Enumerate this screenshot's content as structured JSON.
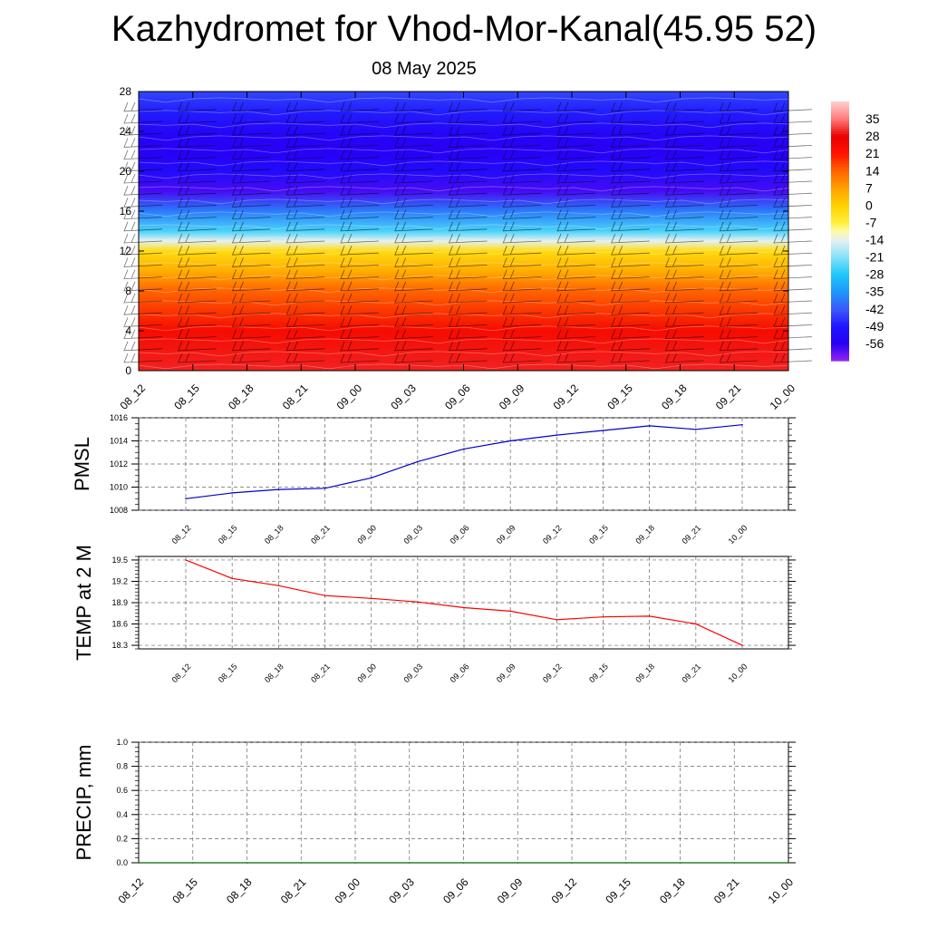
{
  "title": "Kazhydromet for Vhod-Mor-Kanal(45.95 52)",
  "date": "08 May 2025",
  "chart_data": [
    {
      "type": "heatmap",
      "description_key": "vertical_profile",
      "y_ticks": [
        "0",
        "4",
        "8",
        "12",
        "16",
        "20",
        "24",
        "28"
      ],
      "x_ticks": [
        "08_12",
        "08_15",
        "08_18",
        "08_21",
        "09_00",
        "09_03",
        "09_06",
        "09_09",
        "09_12",
        "09_15",
        "09_18",
        "09_21",
        "10_00"
      ],
      "ylim": [
        0,
        28
      ],
      "temperature_levels": [
        {
          "y": 0,
          "value": 30
        },
        {
          "y": 4,
          "value": 24
        },
        {
          "y": 8,
          "value": 14
        },
        {
          "y": 10,
          "value": 5
        },
        {
          "y": 12,
          "value": -2
        },
        {
          "y": 13,
          "value": -14
        },
        {
          "y": 14,
          "value": -25
        },
        {
          "y": 16,
          "value": -38
        },
        {
          "y": 18,
          "value": -58
        },
        {
          "y": 20,
          "value": -52
        },
        {
          "y": 22,
          "value": -56
        },
        {
          "y": 24,
          "value": -54
        },
        {
          "y": 26,
          "value": -48
        },
        {
          "y": 28,
          "value": -44
        }
      ],
      "colorbar": {
        "labels": [
          "35",
          "28",
          "21",
          "14",
          "7",
          "0",
          "-7",
          "-14",
          "-21",
          "-28",
          "-35",
          "-42",
          "-49",
          "-56"
        ],
        "min": -63,
        "max": 42
      }
    },
    {
      "type": "line",
      "ylabel": "PMSL",
      "categories": [
        "08_12",
        "08_15",
        "08_18",
        "08_21",
        "09_00",
        "09_03",
        "09_06",
        "09_09",
        "09_12",
        "09_15",
        "09_18",
        "09_21",
        "10_00"
      ],
      "y_ticks": [
        "1008",
        "1010",
        "1012",
        "1014",
        "1016"
      ],
      "ylim": [
        1008,
        1016
      ],
      "values": [
        1009.0,
        1009.5,
        1009.8,
        1009.9,
        1010.8,
        1012.2,
        1013.3,
        1014.0,
        1014.5,
        1014.9,
        1015.3,
        1015.0,
        1015.4
      ],
      "color": "#0000cc"
    },
    {
      "type": "line",
      "ylabel": "TEMP at 2 M",
      "categories": [
        "08_12",
        "08_15",
        "08_18",
        "08_21",
        "09_00",
        "09_03",
        "09_06",
        "09_09",
        "09_12",
        "09_15",
        "09_18",
        "09_21",
        "10_00"
      ],
      "y_ticks": [
        "18.3",
        "18.6",
        "18.9",
        "19.2",
        "19.5"
      ],
      "ylim": [
        18.25,
        19.55
      ],
      "values": [
        19.5,
        19.24,
        19.14,
        19.0,
        18.96,
        18.91,
        18.83,
        18.78,
        18.66,
        18.7,
        18.71,
        18.6,
        18.3
      ],
      "color": "#ff0000"
    },
    {
      "type": "line",
      "ylabel": "PRECIP, mm",
      "categories": [
        "08_12",
        "08_15",
        "08_18",
        "08_21",
        "09_00",
        "09_03",
        "09_06",
        "09_09",
        "09_12",
        "09_15",
        "09_18",
        "09_21",
        "10_00"
      ],
      "y_ticks": [
        "0.0",
        "0.2",
        "0.4",
        "0.6",
        "0.8",
        "1.0"
      ],
      "ylim": [
        0,
        1
      ],
      "values": [
        0,
        0,
        0,
        0,
        0,
        0,
        0,
        0,
        0,
        0,
        0,
        0,
        0
      ],
      "color": "#006600"
    }
  ]
}
